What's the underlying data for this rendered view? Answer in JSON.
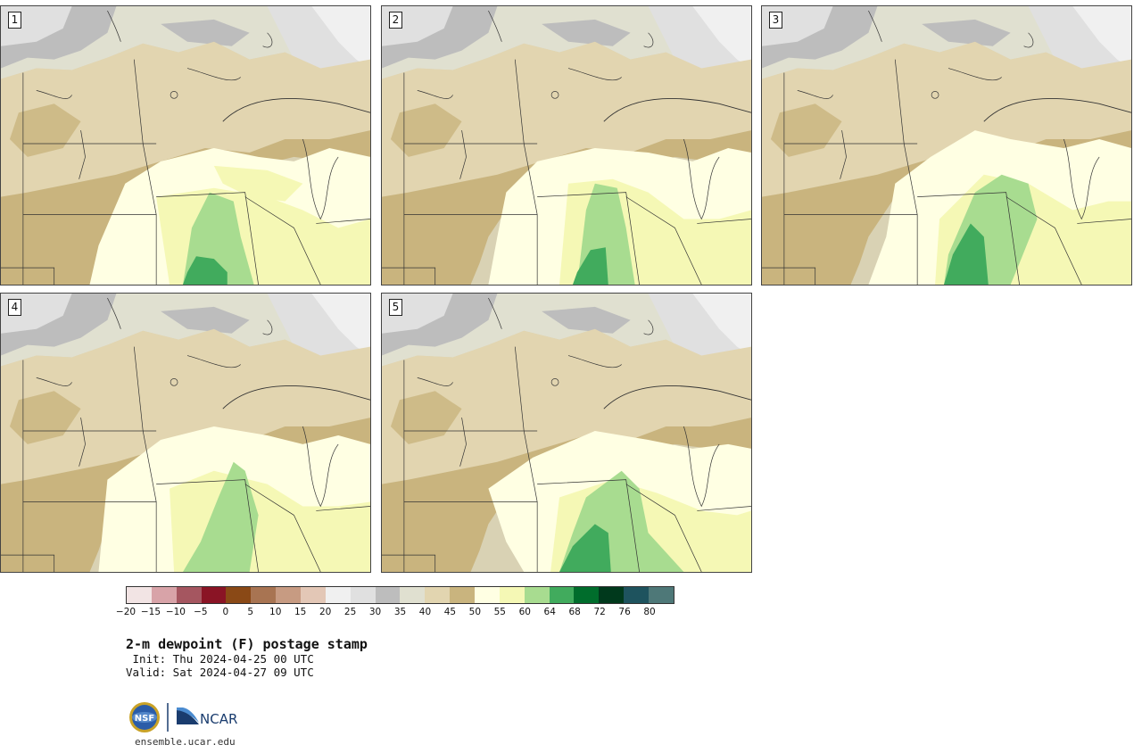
{
  "panels": [
    {
      "label": "1"
    },
    {
      "label": "2"
    },
    {
      "label": "3"
    },
    {
      "label": "4"
    },
    {
      "label": "5"
    }
  ],
  "colorbar": {
    "tick_labels": [
      "−20",
      "−15",
      "−10",
      "−5",
      "0",
      "5",
      "10",
      "15",
      "20",
      "25",
      "30",
      "35",
      "40",
      "45",
      "50",
      "55",
      "60",
      "64",
      "68",
      "72",
      "76",
      "80"
    ],
    "colors": [
      "#f2e4e4",
      "#d8a3a8",
      "#a55660",
      "#8a1425",
      "#8a4916",
      "#a87452",
      "#c79b82",
      "#e3c7b6",
      "#f0f0f0",
      "#e0e0e0",
      "#bdbdbd",
      "#e0e0d0",
      "#e2d5b0",
      "#c9b47e",
      "#ffffe3",
      "#f5f8b5",
      "#a8dc90",
      "#41ab5d",
      "#006d2c",
      "#00391c",
      "#1e535e",
      "#4e7878"
    ]
  },
  "title": "2-m dewpoint (F) postage stamp",
  "init": " Init: Thu 2024-04-25 00 UTC",
  "valid": "Valid: Sat 2024-04-27 09 UTC",
  "logos": {
    "nsf": "NSF",
    "ncar": "NCAR"
  },
  "url": "ensemble.ucar.edu"
}
